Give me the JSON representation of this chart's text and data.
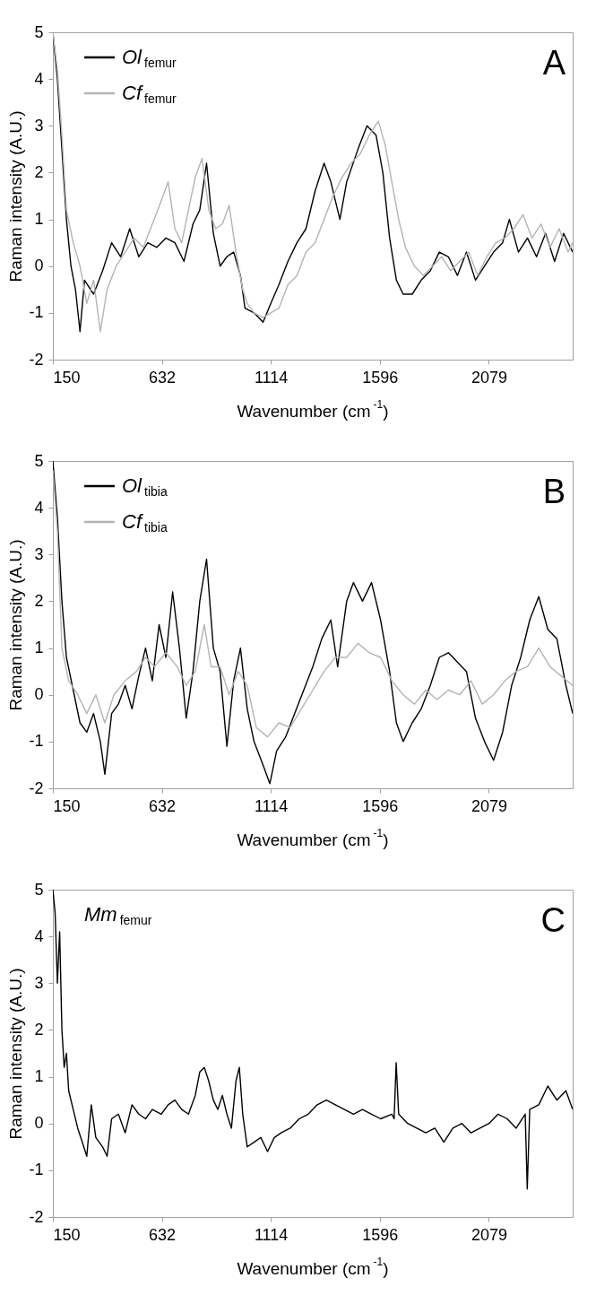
{
  "chart_data": [
    {
      "type": "line",
      "title": "A",
      "xlabel": "Wavenumber (cm$^{-1}$)",
      "ylabel": "Raman intensity (A.U.)",
      "xlim": [
        150,
        2450
      ],
      "xticks": [
        150,
        632,
        1114,
        1596,
        2079
      ],
      "ylim": [
        -2,
        5
      ],
      "yticks": [
        -2,
        -1,
        0,
        1,
        2,
        3,
        4,
        5
      ],
      "legend": "top left",
      "series": [
        {
          "name": "Ol$_{femur}$",
          "color": "#000000",
          "x": [
            150,
            170,
            190,
            210,
            230,
            250,
            270,
            290,
            330,
            370,
            410,
            450,
            490,
            530,
            570,
            610,
            650,
            690,
            730,
            770,
            800,
            830,
            860,
            890,
            920,
            950,
            980,
            1000,
            1040,
            1080,
            1114,
            1150,
            1190,
            1230,
            1270,
            1310,
            1350,
            1380,
            1420,
            1450,
            1500,
            1540,
            1580,
            1610,
            1640,
            1670,
            1700,
            1740,
            1780,
            1820,
            1860,
            1900,
            1940,
            1980,
            2020,
            2060,
            2100,
            2140,
            2170,
            2210,
            2250,
            2290,
            2330,
            2370,
            2410,
            2450
          ],
          "values": [
            5,
            4,
            2.5,
            1,
            0,
            -0.5,
            -1.4,
            -0.3,
            -0.6,
            -0.1,
            0.5,
            0.2,
            0.8,
            0.2,
            0.5,
            0.4,
            0.6,
            0.5,
            0.1,
            0.9,
            1.2,
            2.2,
            0.7,
            0,
            0.2,
            0.3,
            -0.2,
            -0.9,
            -1,
            -1.2,
            -0.8,
            -0.4,
            0.1,
            0.5,
            0.8,
            1.6,
            2.2,
            1.8,
            1,
            1.8,
            2.5,
            3,
            2.8,
            2,
            0.6,
            -0.3,
            -0.6,
            -0.6,
            -0.3,
            -0.1,
            0.3,
            0.2,
            -0.2,
            0.3,
            -0.3,
            0,
            0.3,
            0.5,
            1,
            0.3,
            0.6,
            0.2,
            0.7,
            0.1,
            0.7,
            0.3
          ]
        },
        {
          "name": "Cf$_{femur}$",
          "color": "#b4b4b4",
          "x": [
            150,
            170,
            190,
            210,
            240,
            270,
            300,
            330,
            360,
            390,
            430,
            470,
            510,
            550,
            590,
            630,
            660,
            690,
            720,
            750,
            780,
            810,
            840,
            870,
            900,
            930,
            960,
            990,
            1010,
            1040,
            1080,
            1114,
            1150,
            1190,
            1230,
            1270,
            1310,
            1350,
            1390,
            1430,
            1470,
            1510,
            1550,
            1590,
            1620,
            1650,
            1680,
            1710,
            1750,
            1790,
            1830,
            1870,
            1910,
            1950,
            1990,
            2030,
            2070,
            2110,
            2150,
            2190,
            2230,
            2270,
            2310,
            2350,
            2390,
            2430,
            2450
          ],
          "values": [
            5,
            4.2,
            2.8,
            1.2,
            0.5,
            0,
            -0.8,
            -0.3,
            -1.4,
            -0.5,
            0,
            0.3,
            0.6,
            0.4,
            0.9,
            1.4,
            1.8,
            0.8,
            0.5,
            1.2,
            1.9,
            2.3,
            1.2,
            0.8,
            0.9,
            1.3,
            0.3,
            -0.5,
            -0.8,
            -1,
            -1.1,
            -1,
            -0.9,
            -0.4,
            -0.2,
            0.3,
            0.5,
            1,
            1.5,
            1.9,
            2.2,
            2.4,
            2.8,
            3.1,
            2.6,
            1.8,
            1,
            0.4,
            0,
            -0.2,
            0,
            0.2,
            -0.1,
            0.1,
            0.3,
            -0.2,
            0.2,
            0.5,
            0.6,
            0.8,
            1.1,
            0.6,
            0.9,
            0.4,
            0.8,
            0.3,
            0.5
          ]
        }
      ]
    },
    {
      "type": "line",
      "title": "B",
      "xlabel": "Wavenumber (cm$^{-1}$)",
      "ylabel": "Raman intensity (A.U.)",
      "xlim": [
        150,
        2450
      ],
      "xticks": [
        150,
        632,
        1114,
        1596,
        2079
      ],
      "ylim": [
        -2,
        5
      ],
      "yticks": [
        -2,
        -1,
        0,
        1,
        2,
        3,
        4,
        5
      ],
      "legend": "top left",
      "series": [
        {
          "name": "Ol$_{tibia}$",
          "color": "#000000",
          "x": [
            150,
            170,
            190,
            210,
            240,
            270,
            300,
            330,
            360,
            380,
            410,
            440,
            470,
            500,
            530,
            560,
            590,
            620,
            650,
            680,
            710,
            740,
            770,
            800,
            830,
            860,
            890,
            920,
            950,
            980,
            1010,
            1040,
            1080,
            1110,
            1140,
            1180,
            1220,
            1260,
            1300,
            1340,
            1380,
            1410,
            1450,
            1480,
            1520,
            1560,
            1600,
            1640,
            1670,
            1700,
            1740,
            1780,
            1820,
            1860,
            1900,
            1940,
            1980,
            2020,
            2060,
            2100,
            2140,
            2180,
            2220,
            2260,
            2300,
            2340,
            2380,
            2420,
            2450
          ],
          "values": [
            5,
            3.8,
            2,
            0.8,
            0.1,
            -0.6,
            -0.8,
            -0.4,
            -1,
            -1.7,
            -0.4,
            -0.2,
            0.2,
            -0.3,
            0.4,
            1,
            0.3,
            1.5,
            0.8,
            2.2,
            1,
            -0.5,
            0.5,
            2,
            2.9,
            1,
            0.5,
            -1.1,
            0.3,
            1,
            -0.3,
            -1,
            -1.5,
            -1.9,
            -1.2,
            -0.9,
            -0.4,
            0.1,
            0.6,
            1.2,
            1.6,
            0.6,
            2,
            2.4,
            2,
            2.4,
            1.6,
            0.5,
            -0.6,
            -1,
            -0.6,
            -0.3,
            0.2,
            0.8,
            0.9,
            0.7,
            0.5,
            -0.5,
            -1,
            -1.4,
            -0.8,
            0.2,
            0.8,
            1.6,
            2.1,
            1.4,
            1.2,
            0.2,
            -0.4
          ]
        },
        {
          "name": "Cf$_{tibia}$",
          "color": "#b4b4b4",
          "x": [
            150,
            170,
            190,
            220,
            260,
            300,
            340,
            380,
            420,
            470,
            520,
            560,
            600,
            650,
            700,
            740,
            780,
            820,
            850,
            890,
            930,
            970,
            1010,
            1050,
            1100,
            1150,
            1200,
            1250,
            1300,
            1350,
            1400,
            1450,
            1500,
            1550,
            1600,
            1650,
            1700,
            1750,
            1800,
            1850,
            1900,
            1950,
            2000,
            2050,
            2100,
            2150,
            2200,
            2250,
            2300,
            2350,
            2400,
            2450
          ],
          "values": [
            4.8,
            3.5,
            1,
            0.3,
            0,
            -0.4,
            0,
            -0.6,
            0,
            0.3,
            0.5,
            0.8,
            0.6,
            0.9,
            0.6,
            0.2,
            0.5,
            1.5,
            0.6,
            0.6,
            0,
            0.5,
            0.2,
            -0.7,
            -0.9,
            -0.6,
            -0.7,
            -0.3,
            0.1,
            0.5,
            0.8,
            0.8,
            1.1,
            0.9,
            0.8,
            0.3,
            0,
            -0.2,
            0.1,
            -0.1,
            0.1,
            0,
            0.3,
            -0.2,
            0,
            0.3,
            0.5,
            0.6,
            1,
            0.6,
            0.4,
            0.2
          ]
        }
      ]
    },
    {
      "type": "line",
      "title": "C",
      "xlabel": "Wavenumber (cm$^{-1}$)",
      "ylabel": "Raman intensity (A.U.)",
      "xlim": [
        150,
        2450
      ],
      "xticks": [
        150,
        632,
        1114,
        1596,
        2079
      ],
      "ylim": [
        -2,
        5
      ],
      "yticks": [
        -2,
        -1,
        0,
        1,
        2,
        3,
        4,
        5
      ],
      "annotations": [
        "Mm$_{femur}$"
      ],
      "series": [
        {
          "color": "#000000",
          "x": [
            150,
            160,
            170,
            180,
            190,
            200,
            210,
            220,
            240,
            260,
            280,
            300,
            320,
            340,
            370,
            390,
            410,
            440,
            470,
            500,
            530,
            560,
            590,
            630,
            660,
            690,
            720,
            750,
            780,
            800,
            820,
            840,
            860,
            880,
            900,
            920,
            940,
            960,
            975,
            990,
            1010,
            1040,
            1070,
            1100,
            1130,
            1160,
            1200,
            1240,
            1280,
            1320,
            1360,
            1400,
            1440,
            1480,
            1520,
            1560,
            1600,
            1650,
            1660,
            1669,
            1680,
            1720,
            1760,
            1800,
            1840,
            1880,
            1920,
            1960,
            2000,
            2040,
            2080,
            2120,
            2160,
            2200,
            2240,
            2249,
            2260,
            2300,
            2340,
            2380,
            2420,
            2450
          ],
          "values": [
            5,
            4.5,
            3,
            4.1,
            2,
            1.2,
            1.5,
            0.7,
            0.3,
            -0.1,
            -0.4,
            -0.7,
            0.4,
            -0.3,
            -0.5,
            -0.7,
            0.1,
            0.2,
            -0.2,
            0.4,
            0.2,
            0.1,
            0.3,
            0.2,
            0.4,
            0.5,
            0.3,
            0.2,
            0.6,
            1.1,
            1.2,
            0.9,
            0.5,
            0.3,
            0.6,
            0.2,
            -0.1,
            0.9,
            1.2,
            0.2,
            -0.5,
            -0.4,
            -0.3,
            -0.6,
            -0.3,
            -0.2,
            -0.1,
            0.1,
            0.2,
            0.4,
            0.5,
            0.4,
            0.3,
            0.2,
            0.3,
            0.2,
            0.1,
            0.2,
            0.1,
            1.3,
            0.2,
            0,
            -0.1,
            -0.2,
            -0.1,
            -0.4,
            -0.1,
            0,
            -0.2,
            -0.1,
            0,
            0.2,
            0.1,
            -0.1,
            0.2,
            -1.4,
            0.3,
            0.4,
            0.8,
            0.5,
            0.7,
            0.3
          ]
        }
      ]
    }
  ]
}
